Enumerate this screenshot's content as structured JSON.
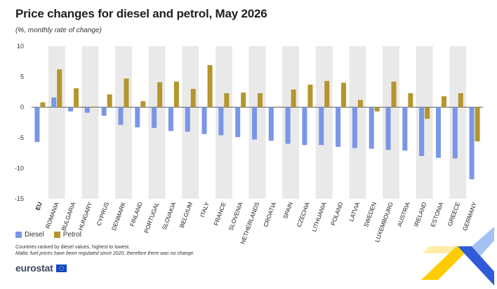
{
  "title": "Price changes for diesel and petrol, May 2026",
  "subtitle": "(%, monthly rate of change)",
  "notes": {
    "line1": "Countries ranked by diesel values, highest to lowest.",
    "line2": "Malta: fuel prices have been regulated since 2020, therefore there was no change."
  },
  "brand": {
    "name": "eurostat",
    "logo_icon": "eu-flag-icon"
  },
  "colors": {
    "diesel": "#7b96e6",
    "petrol": "#b5952d",
    "band": "#e9e9e9"
  },
  "chart_data": {
    "type": "bar",
    "title": "Price changes for diesel and petrol, May 2026",
    "subtitle": "(%, monthly rate of change)",
    "xlabel": "",
    "ylabel": "",
    "ylim": [
      -15,
      10
    ],
    "yticks": [
      10,
      5,
      0,
      -5,
      -10,
      -15
    ],
    "grid": false,
    "legend": "bottom-left",
    "categories": [
      "EU",
      "ROMANIA",
      "BULGARIA",
      "HUNGARY",
      "CYPRUS",
      "DENMARK",
      "FINLAND",
      "PORTUGAL",
      "SLOVAKIA",
      "BELGIUM",
      "ITALY",
      "FRANCE",
      "SLOVENIA",
      "NETHERLANDS",
      "CROATIA",
      "SPAIN",
      "CZECHIA",
      "LITHUANIA",
      "POLAND",
      "LATVIA",
      "SWEDEN",
      "LUXEMBOURG",
      "AUSTRIA",
      "IRELAND",
      "ESTONIA",
      "GREECE",
      "GERMANY"
    ],
    "series": [
      {
        "name": "Diesel",
        "values": [
          -5.7,
          1.6,
          -0.7,
          -0.9,
          -1.4,
          -2.9,
          -3.3,
          -3.4,
          -3.9,
          -4.0,
          -4.4,
          -4.6,
          -4.9,
          -5.3,
          -5.5,
          -6.0,
          -6.2,
          -6.2,
          -6.5,
          -6.7,
          -6.8,
          -7.0,
          -7.1,
          -8.0,
          -8.3,
          -8.4,
          -11.8
        ]
      },
      {
        "name": "Petrol",
        "values": [
          0.8,
          6.2,
          3.1,
          0.1,
          2.1,
          4.7,
          1.0,
          4.1,
          4.2,
          3.0,
          6.9,
          2.3,
          2.4,
          2.3,
          0.1,
          2.9,
          3.7,
          4.3,
          4.0,
          1.2,
          -0.7,
          4.2,
          2.3,
          -1.9,
          1.8,
          2.3,
          -5.6
        ]
      }
    ]
  }
}
